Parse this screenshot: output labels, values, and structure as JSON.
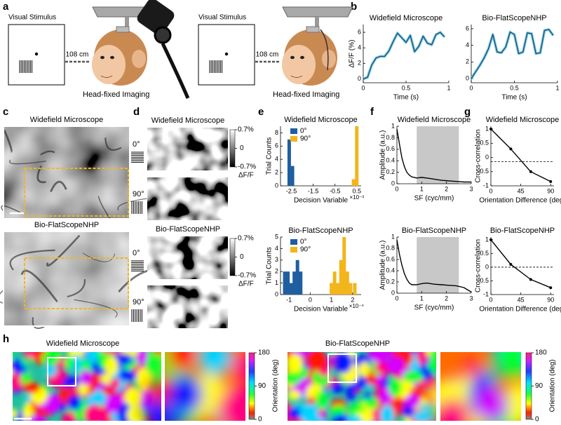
{
  "panels": {
    "a": {
      "label": "a",
      "setups": [
        {
          "stimulus": "Visual Stimulus",
          "distance": "108 cm",
          "caption": "Head-fixed Imaging"
        },
        {
          "stimulus": "Visual Stimulus",
          "distance": "108 cm",
          "caption": "Head-fixed Imaging"
        }
      ]
    },
    "b": {
      "label": "b",
      "charts": [
        {
          "type": "line",
          "title": "Widefield Microscope",
          "xlabel": "Time (s)",
          "ylabel": "ΔF/F (%)",
          "color": "#14507a",
          "x": [
            0,
            0.05,
            0.1,
            0.15,
            0.2,
            0.25,
            0.3,
            0.35,
            0.4,
            0.45,
            0.5,
            0.55,
            0.6,
            0.65,
            0.7,
            0.75,
            0.8,
            0.85,
            0.9,
            0.95
          ],
          "values": [
            0,
            0.2,
            1.8,
            2.7,
            2.9,
            2.9,
            3.6,
            4.8,
            5.9,
            5.3,
            4.7,
            5.6,
            3.5,
            4.2,
            5.5,
            4.6,
            4.4,
            5.7,
            6.0,
            5.4
          ],
          "xlim": [
            0,
            1
          ],
          "ylim": [
            -0.5,
            7
          ],
          "xticks": [
            0,
            0.5,
            1
          ],
          "yticks": [
            0,
            2,
            4,
            6
          ]
        },
        {
          "type": "line",
          "title": "Bio-FlatScopeNHP",
          "xlabel": "Time (s)",
          "color": "#14507a",
          "x": [
            0,
            0.05,
            0.1,
            0.15,
            0.2,
            0.25,
            0.3,
            0.35,
            0.4,
            0.45,
            0.5,
            0.55,
            0.6,
            0.65,
            0.7,
            0.75,
            0.8,
            0.85,
            0.9,
            0.95
          ],
          "values": [
            0,
            0.8,
            1.6,
            2.5,
            3.6,
            5.3,
            3.2,
            3.1,
            3.8,
            5.6,
            5.3,
            3.0,
            3.2,
            5.5,
            5.4,
            3.0,
            3.1,
            5.8,
            5.9,
            5.2
          ],
          "xlim": [
            0,
            1
          ],
          "ylim": [
            -0.5,
            6.5
          ],
          "xticks": [
            0,
            0.5,
            1
          ],
          "yticks": [
            0,
            2,
            4,
            6
          ]
        }
      ]
    },
    "c": {
      "label": "c",
      "images": [
        {
          "title": "Widefield Microscope"
        },
        {
          "title": "Bio-FlatScopeNHP"
        }
      ]
    },
    "d": {
      "label": "d",
      "groups": [
        {
          "title": "Widefield Microscope"
        },
        {
          "title": "Bio-FlatScopeNHP"
        }
      ],
      "conditions": [
        "0°",
        "90°"
      ],
      "colorbar": {
        "lim": [
          -0.7,
          0.7
        ],
        "ticks": [
          {
            "value": 0.7,
            "label": "0.7%"
          },
          0,
          {
            "value": -0.7,
            "label": "-0.7%"
          }
        ],
        "label": "ΔF/F"
      }
    },
    "e": {
      "label": "e",
      "charts": [
        {
          "type": "bar",
          "title": "Widefield Microscope",
          "xlabel": "Decision Variable",
          "ylabel": "Trial Counts",
          "x_exponent": "×10⁻³",
          "series": [
            {
              "name": "0°",
              "color": "#1f5fa0",
              "x": [
                -2.6,
                -2.45
              ],
              "values": [
                7,
                3
              ]
            },
            {
              "name": "90°",
              "color": "#f2b51c",
              "x": [
                0.35,
                0.5
              ],
              "values": [
                1,
                9
              ]
            }
          ],
          "xlim": [
            -3,
            0.7
          ],
          "ylim": [
            0,
            9
          ],
          "xticks": [
            -2.5,
            -1.5,
            -0.5,
            0.5
          ],
          "yticks": [
            0,
            2,
            4,
            6,
            8
          ]
        },
        {
          "type": "bar",
          "title": "Bio-FlatScopeNHP",
          "xlabel": "Decision Variable",
          "ylabel": "Trial Counts",
          "x_exponent": "×10⁻⁴",
          "series": [
            {
              "name": "0°",
              "color": "#1f5fa0",
              "x": [
                -1.2,
                -1.05,
                -0.9,
                -0.75,
                -0.6,
                -0.45
              ],
              "values": [
                2,
                2,
                1,
                2,
                3,
                2
              ]
            },
            {
              "name": "90°",
              "color": "#f2b51c",
              "x": [
                1.0,
                1.15,
                1.3,
                1.45,
                1.6,
                1.75,
                1.9,
                2.1
              ],
              "values": [
                1,
                2,
                1,
                3,
                5,
                2,
                1,
                1
              ]
            }
          ],
          "xlim": [
            -1.4,
            2.4
          ],
          "ylim": [
            0,
            5
          ],
          "xticks": [
            -1,
            0,
            1,
            2
          ],
          "yticks": [
            0,
            1,
            2,
            3,
            4,
            5
          ]
        }
      ]
    },
    "f": {
      "label": "f",
      "charts": [
        {
          "type": "line",
          "title": "Widefield Microscope",
          "xlabel": "SF (cyc/mm)",
          "ylabel": "Amplitude (a.u.)",
          "color": "#000000",
          "x": [
            0,
            0.1,
            0.2,
            0.3,
            0.4,
            0.5,
            0.6,
            0.8,
            1.0,
            1.2,
            1.5,
            1.8,
            2.1,
            2.4,
            2.7,
            3.0
          ],
          "values": [
            0.95,
            0.7,
            0.45,
            0.3,
            0.2,
            0.15,
            0.12,
            0.1,
            0.11,
            0.1,
            0.08,
            0.06,
            0.05,
            0.04,
            0.03,
            0.03
          ],
          "shaded": [
            0.8,
            2.5
          ],
          "xlim": [
            0,
            3
          ],
          "ylim": [
            0,
            1
          ],
          "xticks": [
            0,
            1,
            2,
            3
          ],
          "yticks": [
            0,
            0.2,
            0.4,
            0.6,
            0.8,
            1
          ]
        },
        {
          "type": "line",
          "title": "Bio-FlatScopeNHP",
          "xlabel": "SF (cyc/mm)",
          "ylabel": "Amplitude (a.u.)",
          "color": "#000000",
          "x": [
            0,
            0.1,
            0.2,
            0.3,
            0.4,
            0.5,
            0.6,
            0.8,
            1.0,
            1.2,
            1.5,
            1.8,
            2.1,
            2.4,
            2.7,
            3.0
          ],
          "values": [
            0.95,
            0.7,
            0.5,
            0.35,
            0.25,
            0.18,
            0.15,
            0.15,
            0.17,
            0.18,
            0.16,
            0.15,
            0.14,
            0.13,
            0.1,
            0.02
          ],
          "shaded": [
            0.8,
            2.5
          ],
          "xlim": [
            0,
            3
          ],
          "ylim": [
            0,
            1
          ],
          "xticks": [
            0,
            1,
            2,
            3
          ],
          "yticks": [
            0,
            0.2,
            0.4,
            0.6,
            0.8,
            1
          ]
        }
      ]
    },
    "g": {
      "label": "g",
      "charts": [
        {
          "type": "line",
          "title": "Widefield Microscope",
          "xlabel": "Orientation Difference (deg)",
          "ylabel": "Cross-correlation",
          "color": "#000000",
          "markers": true,
          "x": [
            0,
            30,
            60,
            90
          ],
          "values": [
            1,
            0.3,
            -0.5,
            -0.85
          ],
          "dashed_line": -0.15,
          "xlim": [
            0,
            95
          ],
          "ylim": [
            -1,
            1.1
          ],
          "xticks": [
            0,
            45,
            90
          ],
          "yticks": [
            -1,
            -0.5,
            0,
            0.5,
            1
          ]
        },
        {
          "type": "line",
          "title": "Bio-FlatScopeNHP",
          "xlabel": "Orientation Difference (deg)",
          "ylabel": "Cross-correlation",
          "color": "#000000",
          "markers": true,
          "x": [
            0,
            30,
            60,
            90
          ],
          "values": [
            1,
            0.1,
            -0.45,
            -0.75
          ],
          "dashed_line": 0,
          "xlim": [
            0,
            95
          ],
          "ylim": [
            -1,
            1.1
          ],
          "xticks": [
            0,
            45,
            90
          ],
          "yticks": [
            -1,
            -0.5,
            0,
            0.5,
            1
          ]
        }
      ]
    },
    "h": {
      "label": "h",
      "maps": [
        {
          "title": "Widefield Microscope"
        },
        {
          "title": "Bio-FlatScopeNHP"
        }
      ],
      "colorbar": {
        "lim": [
          0,
          180
        ],
        "ticks": [
          180,
          90,
          0
        ],
        "label": "Orientation (deg)"
      }
    }
  }
}
